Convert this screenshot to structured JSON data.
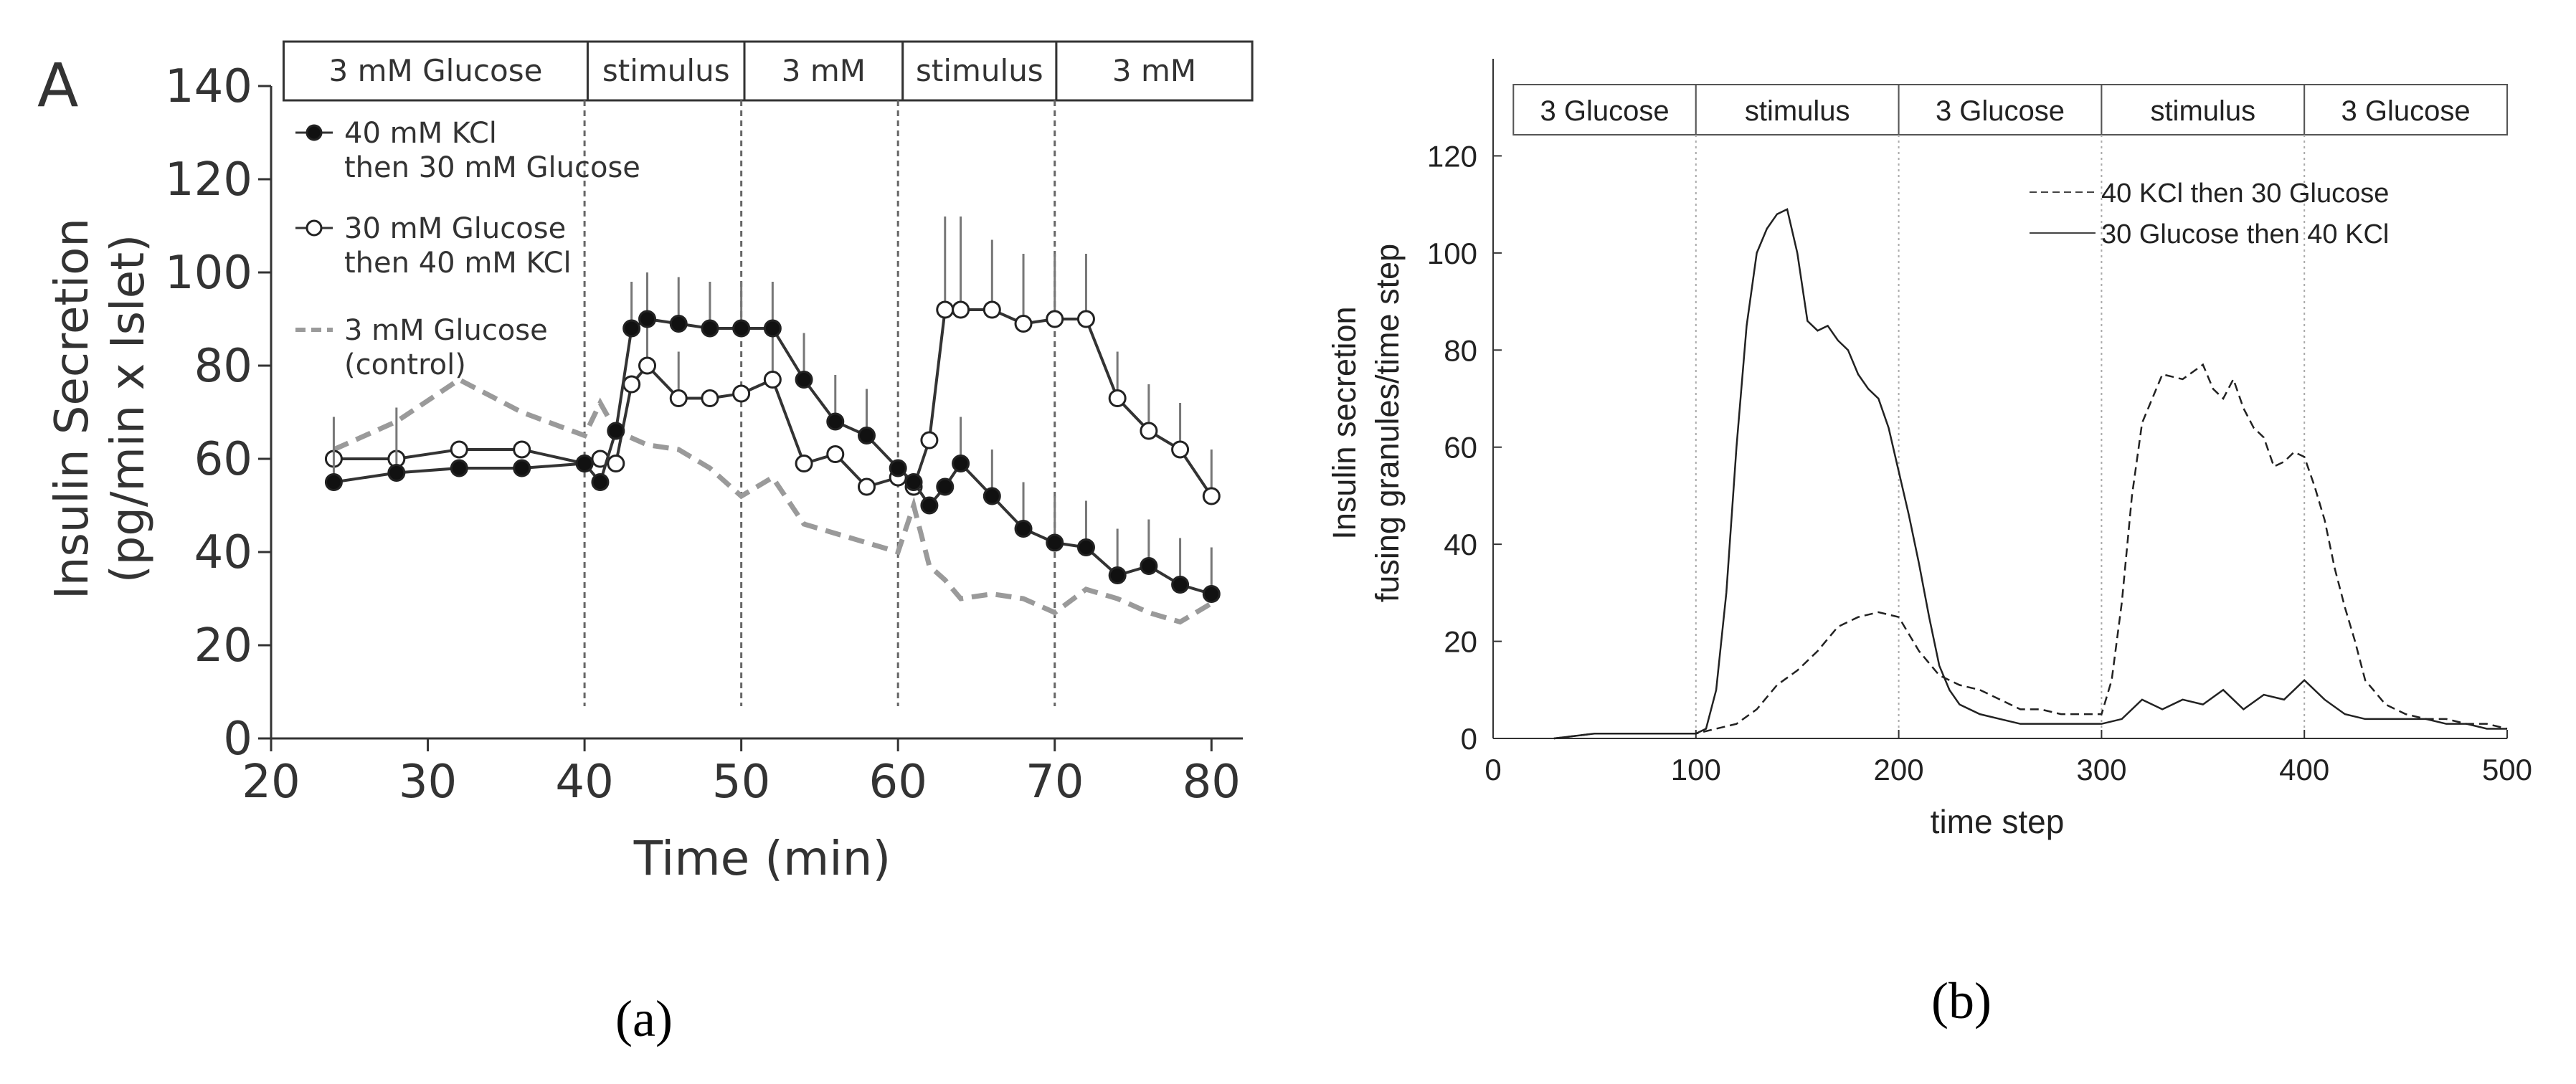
{
  "panel_a_caption": "(a)",
  "panel_b_caption": "(b)",
  "chart_data": [
    {
      "id": "a",
      "type": "line",
      "panel_letter": "A",
      "xlabel": "Time (min)",
      "ylabel_line1": "Insulin Secretion",
      "ylabel_line2": "(pg/min x Islet)",
      "xlim": [
        20,
        82
      ],
      "ylim": [
        0,
        140
      ],
      "xticks": [
        20,
        30,
        40,
        50,
        60,
        70,
        80
      ],
      "yticks": [
        0,
        20,
        40,
        60,
        80,
        100,
        120,
        140
      ],
      "phase_boundaries": [
        40,
        50,
        60,
        70
      ],
      "phases": [
        {
          "label": "3 mM Glucose",
          "start": 20.8,
          "end": 40.2
        },
        {
          "label": "stimulus",
          "start": 40.2,
          "end": 50.2
        },
        {
          "label": "3 mM",
          "start": 50.2,
          "end": 60.3
        },
        {
          "label": "stimulus",
          "start": 60.3,
          "end": 70.1
        },
        {
          "label": "3 mM",
          "start": 70.1,
          "end": 82.6
        }
      ],
      "legend": [
        {
          "line1": "40 mM KCl",
          "line2": "then 30 mM Glucose",
          "marker": "filled"
        },
        {
          "line1": "30 mM Glucose",
          "line2": "then 40 mM KCl",
          "marker": "open"
        },
        {
          "line1": "3 mM Glucose",
          "line2": "(control)",
          "marker": "dashed"
        }
      ],
      "series": [
        {
          "name": "40 mM KCl then 30 mM Glucose",
          "x": [
            24,
            28,
            32,
            36,
            40,
            41,
            42,
            43,
            44,
            46,
            48,
            50,
            52,
            54,
            56,
            58,
            60,
            61,
            62,
            63,
            64,
            66,
            68,
            70,
            72,
            74,
            76,
            78,
            80
          ],
          "y": [
            55,
            57,
            58,
            58,
            59,
            55,
            66,
            88,
            90,
            89,
            88,
            88,
            88,
            77,
            68,
            65,
            58,
            55,
            50,
            54,
            59,
            52,
            45,
            42,
            41,
            35,
            37,
            33,
            31
          ],
          "err": [
            14,
            14,
            0,
            0,
            0,
            0,
            0,
            10,
            10,
            10,
            10,
            10,
            10,
            10,
            10,
            10,
            0,
            0,
            0,
            0,
            10,
            10,
            10,
            10,
            10,
            10,
            10,
            10,
            10
          ]
        },
        {
          "name": "30 mM Glucose then 40 mM KCl",
          "x": [
            24,
            28,
            32,
            36,
            40,
            41,
            42,
            43,
            44,
            46,
            48,
            50,
            52,
            54,
            56,
            58,
            60,
            61,
            62,
            63,
            64,
            66,
            68,
            70,
            72,
            74,
            76,
            78,
            80
          ],
          "y": [
            60,
            60,
            62,
            62,
            59,
            60,
            59,
            76,
            80,
            73,
            73,
            74,
            77,
            59,
            61,
            54,
            56,
            54,
            64,
            92,
            92,
            92,
            89,
            90,
            90,
            73,
            66,
            62,
            52
          ],
          "err": [
            0,
            0,
            0,
            0,
            0,
            0,
            0,
            0,
            10,
            10,
            0,
            0,
            10,
            0,
            0,
            0,
            0,
            0,
            0,
            20,
            20,
            15,
            15,
            14,
            14,
            10,
            10,
            10,
            10
          ]
        },
        {
          "name": "3 mM Glucose (control)",
          "dashed": true,
          "x": [
            24,
            28,
            32,
            36,
            40,
            41,
            42,
            44,
            46,
            48,
            50,
            52,
            54,
            56,
            58,
            60,
            61,
            62,
            63,
            64,
            66,
            68,
            70,
            72,
            74,
            76,
            78,
            80
          ],
          "y": [
            62,
            68,
            77,
            70,
            65,
            72,
            66,
            63,
            62,
            58,
            52,
            56,
            46,
            44,
            42,
            40,
            50,
            37,
            34,
            30,
            31,
            30,
            27,
            32,
            30,
            27,
            25,
            29
          ]
        }
      ]
    },
    {
      "id": "b",
      "type": "line",
      "xlabel": "time step",
      "ylabel_line1": "Insulin secretion",
      "ylabel_line2": "fusing granules/time step",
      "xlim": [
        0,
        500
      ],
      "ylim": [
        0,
        140
      ],
      "xticks": [
        0,
        100,
        200,
        300,
        400,
        500
      ],
      "yticks": [
        0,
        20,
        40,
        60,
        80,
        100,
        120
      ],
      "phase_boundaries": [
        100,
        200,
        300,
        400
      ],
      "phases": [
        {
          "label": "3 Glucose",
          "start": 10,
          "end": 100
        },
        {
          "label": "stimulus",
          "start": 100,
          "end": 200
        },
        {
          "label": "3 Glucose",
          "start": 200,
          "end": 300
        },
        {
          "label": "stimulus",
          "start": 300,
          "end": 400
        },
        {
          "label": "3 Glucose",
          "start": 400,
          "end": 500
        }
      ],
      "legend": [
        {
          "label": "40 KCl then 30 Glucose",
          "style": "dashed"
        },
        {
          "label": "30 Glucose then 40 KCl",
          "style": "solid"
        }
      ],
      "series": [
        {
          "name": "30 Glucose then 40 KCl",
          "dashed": false,
          "x": [
            30,
            50,
            70,
            90,
            100,
            105,
            110,
            115,
            120,
            125,
            130,
            135,
            140,
            145,
            150,
            155,
            160,
            165,
            170,
            175,
            180,
            185,
            190,
            195,
            200,
            205,
            210,
            215,
            220,
            225,
            230,
            240,
            250,
            260,
            270,
            280,
            290,
            300,
            310,
            320,
            330,
            340,
            350,
            360,
            370,
            380,
            390,
            400,
            410,
            420,
            430,
            440,
            450,
            460,
            470,
            480,
            490,
            500
          ],
          "y": [
            0,
            1,
            1,
            1,
            1,
            2,
            10,
            30,
            60,
            85,
            100,
            105,
            108,
            109,
            100,
            86,
            84,
            85,
            82,
            80,
            75,
            72,
            70,
            64,
            55,
            46,
            36,
            25,
            15,
            10,
            7,
            5,
            4,
            3,
            3,
            3,
            3,
            3,
            4,
            8,
            6,
            8,
            7,
            10,
            6,
            9,
            8,
            12,
            8,
            5,
            4,
            4,
            4,
            4,
            3,
            3,
            2,
            2
          ]
        },
        {
          "name": "40 KCl then 30 Glucose",
          "dashed": true,
          "x": [
            30,
            50,
            70,
            90,
            100,
            110,
            120,
            130,
            140,
            150,
            160,
            170,
            180,
            190,
            200,
            210,
            220,
            230,
            240,
            250,
            260,
            270,
            280,
            290,
            300,
            305,
            310,
            315,
            320,
            330,
            340,
            350,
            355,
            360,
            365,
            370,
            375,
            380,
            385,
            390,
            395,
            400,
            405,
            410,
            415,
            420,
            425,
            430,
            440,
            450,
            460,
            470,
            480,
            490,
            500
          ],
          "y": [
            0,
            1,
            1,
            1,
            1,
            2,
            3,
            6,
            11,
            14,
            18,
            23,
            25,
            26,
            25,
            18,
            13,
            11,
            10,
            8,
            6,
            6,
            5,
            5,
            5,
            12,
            28,
            50,
            65,
            75,
            74,
            77,
            72,
            70,
            74,
            68,
            64,
            62,
            56,
            57,
            59,
            58,
            52,
            45,
            35,
            27,
            20,
            12,
            7,
            5,
            4,
            4,
            3,
            3,
            2
          ]
        }
      ]
    }
  ]
}
